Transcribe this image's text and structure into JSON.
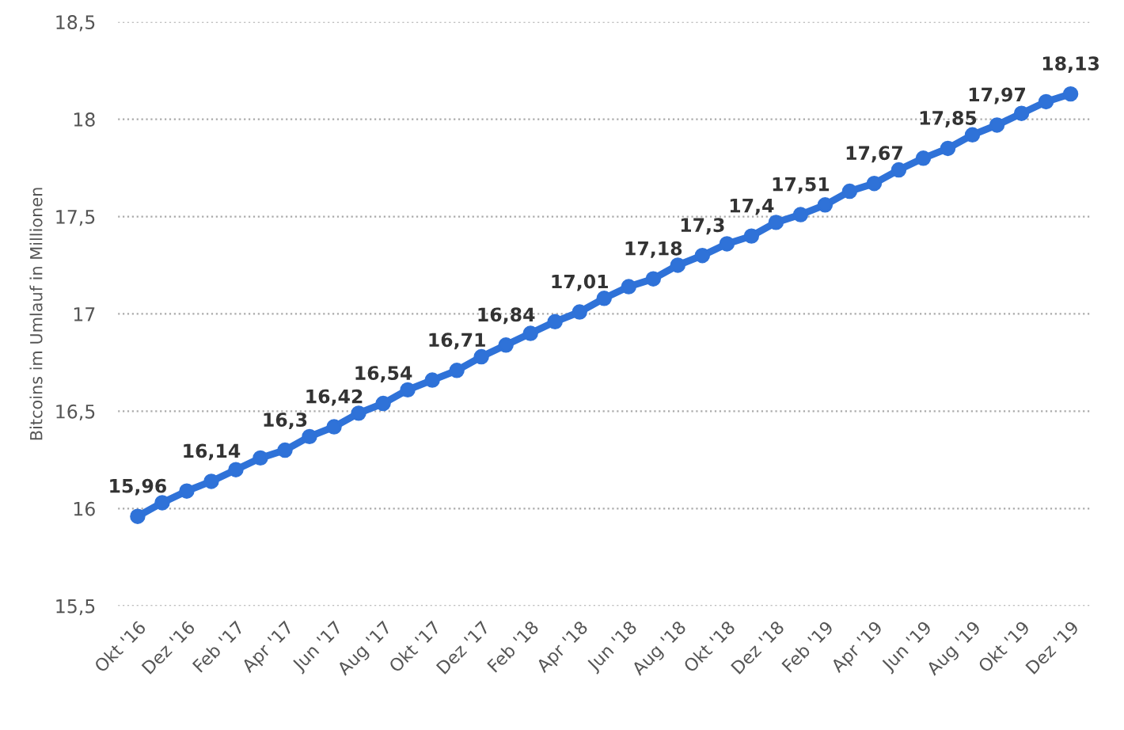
{
  "chart_data": {
    "type": "line",
    "ylabel": "Bitcoins im Umlauf in Millionen",
    "categories": [
      "Okt '16",
      null,
      "Dez '16",
      null,
      "Feb '17",
      null,
      "Apr '17",
      null,
      "Jun '17",
      null,
      "Aug '17",
      null,
      "Okt '17",
      null,
      "Dez '17",
      null,
      "Feb '18",
      null,
      "Apr '18",
      null,
      "Jun '18",
      null,
      "Aug '18",
      null,
      "Okt '18",
      null,
      "Dez '18",
      null,
      "Feb '19",
      null,
      "Apr '19",
      null,
      "Jun '19",
      null,
      "Aug '19",
      null,
      "Okt '19",
      null,
      "Dez '19"
    ],
    "series": [
      {
        "color": "#2f72d8",
        "values": [
          15.96,
          16.03,
          16.09,
          16.14,
          16.2,
          16.26,
          16.3,
          16.37,
          16.42,
          16.49,
          16.54,
          16.61,
          16.66,
          16.71,
          16.78,
          16.84,
          16.9,
          16.96,
          17.01,
          17.08,
          17.14,
          17.18,
          17.25,
          17.3,
          17.36,
          17.4,
          17.47,
          17.51,
          17.56,
          17.63,
          17.67,
          17.74,
          17.8,
          17.85,
          17.92,
          17.97,
          18.03,
          18.09,
          18.13
        ],
        "value_labels": [
          "15,96",
          null,
          null,
          "16,14",
          null,
          null,
          "16,3",
          null,
          "16,42",
          null,
          "16,54",
          null,
          null,
          "16,71",
          null,
          "16,84",
          null,
          null,
          "17,01",
          null,
          null,
          "17,18",
          null,
          "17,3",
          null,
          "17,4",
          null,
          "17,51",
          null,
          null,
          "17,67",
          null,
          null,
          "17,85",
          null,
          "17,97",
          null,
          null,
          "18,13"
        ]
      }
    ],
    "ylim": [
      15.5,
      18.5
    ],
    "yticks": [
      {
        "value": 15.5,
        "label": "15,5"
      },
      16,
      {
        "value": 16.5,
        "label": "16,5"
      },
      17,
      {
        "value": 17.5,
        "label": "17,5"
      },
      18,
      {
        "value": 18.5,
        "label": "18,5"
      }
    ],
    "grid": "y",
    "marker": "circle",
    "line_style": "solid"
  }
}
